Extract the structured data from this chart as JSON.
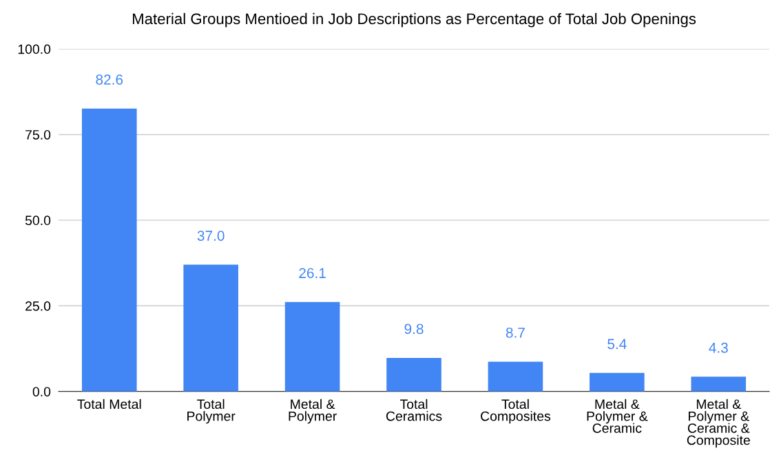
{
  "chart_data": {
    "type": "bar",
    "title": "Material Groups Mentioed in Job Descriptions as Percentage of Total Job Openings",
    "categories": [
      "Total Metal",
      "Total\nPolymer",
      "Metal &\nPolymer",
      "Total\nCeramics",
      "Total\nComposites",
      "Metal &\nPolymer &\nCeramic",
      "Metal &\nPolymer &\nCeramic &\nComposite"
    ],
    "values": [
      82.6,
      37.0,
      26.1,
      9.8,
      8.7,
      5.4,
      4.3
    ],
    "value_labels": [
      "82.6",
      "37.0",
      "26.1",
      "9.8",
      "8.7",
      "5.4",
      "4.3"
    ],
    "color": "#4285f4",
    "ylim": [
      0,
      100
    ],
    "yticks": [
      {
        "value": 0,
        "label": "0.0"
      },
      {
        "value": 25,
        "label": "25.0"
      },
      {
        "value": 50,
        "label": "50.0"
      },
      {
        "value": 75,
        "label": "75.0"
      },
      {
        "value": 100,
        "label": "100.0"
      }
    ],
    "grid": "y"
  }
}
